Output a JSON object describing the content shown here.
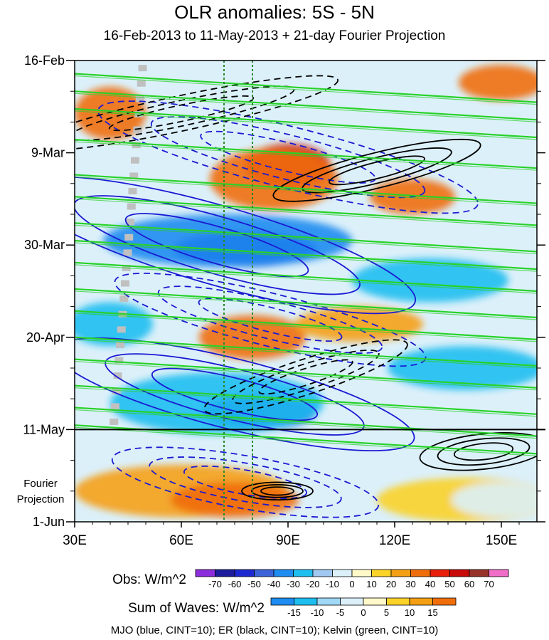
{
  "chart_data": {
    "type": "heatmap",
    "title": "OLR anomalies: 5S - 5N",
    "subtitle": "16-Feb-2013 to 11-May-2013 + 21-day Fourier Projection",
    "x_ticks": [
      "30E",
      "60E",
      "90E",
      "120E",
      "150E"
    ],
    "x_tick_values": [
      30,
      60,
      90,
      120,
      150
    ],
    "xlim": [
      30,
      160
    ],
    "y_ticks": [
      "16-Feb",
      "9-Mar",
      "30-Mar",
      "20-Apr",
      "11-May",
      "1-Jun"
    ],
    "y_tick_days": [
      0,
      21,
      42,
      63,
      84,
      105
    ],
    "ylim_days": [
      0,
      105
    ],
    "projection_label": [
      "Fourier",
      "Projection"
    ],
    "projection_start": "11-May",
    "reference_lines": [
      72,
      80
    ],
    "obs_colorbar": {
      "label": "Obs: W/m^2",
      "levels": [
        -70,
        -60,
        -50,
        -40,
        -30,
        -20,
        -10,
        0,
        10,
        20,
        30,
        40,
        50,
        60,
        70
      ],
      "colors": [
        "#8c2cdc",
        "#1c1c9c",
        "#1e28d0",
        "#3c64d8",
        "#1e8cf0",
        "#1ebef0",
        "#a0c8f0",
        "#dcf0fa",
        "#fff8c8",
        "#fad228",
        "#f5a014",
        "#f06e0a",
        "#e61e0a",
        "#c80a0a",
        "#963228",
        "#f06ec8"
      ]
    },
    "waves_colorbar": {
      "label": "Sum of Waves: W/m^2",
      "levels": [
        -15,
        -10,
        -5,
        0,
        5,
        10,
        15
      ],
      "colors": [
        "#1e8cf0",
        "#1ebef0",
        "#a0d8f5",
        "#dcf0fa",
        "#fff8c8",
        "#fad228",
        "#f5a014",
        "#f06e0a"
      ]
    },
    "footer": "MJO (blue, CINT=10); ER (black, CINT=10); Kelvin (green, CINT=10)",
    "series": [
      {
        "name": "MJO",
        "color": "#1a1ad2",
        "centers": [
          {
            "lon": 70,
            "day": 42,
            "rx": 58,
            "ry": 9,
            "angle": 16,
            "sign": -1
          },
          {
            "lon": 75,
            "day": 76,
            "rx": 52,
            "ry": 8,
            "angle": 14,
            "sign": -1
          },
          {
            "lon": 90,
            "day": 22,
            "rx": 55,
            "ry": 7,
            "angle": 14,
            "sign": 1
          },
          {
            "lon": 85,
            "day": 59,
            "rx": 45,
            "ry": 6,
            "angle": 14,
            "sign": 1
          },
          {
            "lon": 78,
            "day": 96,
            "rx": 38,
            "ry": 6,
            "angle": 10,
            "sign": 1
          }
        ]
      },
      {
        "name": "ER",
        "color": "#000000",
        "centers": [
          {
            "lon": 60,
            "day": 12,
            "rx": 45,
            "ry": 4,
            "angle": -12,
            "sign": 1
          },
          {
            "lon": 115,
            "day": 25,
            "rx": 30,
            "ry": 4,
            "angle": -14,
            "sign": -1
          },
          {
            "lon": 95,
            "day": 72,
            "rx": 30,
            "ry": 4,
            "angle": -18,
            "sign": 1
          },
          {
            "lon": 145,
            "day": 89,
            "rx": 18,
            "ry": 4,
            "angle": -6,
            "sign": -1
          },
          {
            "lon": 87,
            "day": 98,
            "rx": 10,
            "ry": 2,
            "angle": 0,
            "sign": -1
          }
        ]
      },
      {
        "name": "Kelvin",
        "color": "#28d228",
        "lines": [
          {
            "day0": 3,
            "slope": 0.05
          },
          {
            "day0": 7,
            "slope": 0.05
          },
          {
            "day0": 11,
            "slope": 0.05
          },
          {
            "day0": 18,
            "slope": 0.05
          },
          {
            "day0": 26,
            "slope": 0.05
          },
          {
            "day0": 31,
            "slope": 0.05
          },
          {
            "day0": 37,
            "slope": 0.05
          },
          {
            "day0": 41,
            "slope": 0.05
          },
          {
            "day0": 46,
            "slope": 0.05
          },
          {
            "day0": 52,
            "slope": 0.05
          },
          {
            "day0": 57,
            "slope": 0.05
          },
          {
            "day0": 63,
            "slope": 0.05
          },
          {
            "day0": 68,
            "slope": 0.05
          },
          {
            "day0": 74,
            "slope": 0.05
          },
          {
            "day0": 79,
            "slope": 0.05
          },
          {
            "day0": 83,
            "slope": 0.05
          }
        ]
      }
    ],
    "anomaly_blobs": [
      {
        "lon": 90,
        "day": 24,
        "rx": 12,
        "ry": 5,
        "value": 55
      },
      {
        "lon": 86,
        "day": 27,
        "rx": 18,
        "ry": 7,
        "value": 35
      },
      {
        "lon": 78,
        "day": 43,
        "rx": 20,
        "ry": 4,
        "value": -60
      },
      {
        "lon": 73,
        "day": 41,
        "rx": 35,
        "ry": 6,
        "value": -35
      },
      {
        "lon": 82,
        "day": 80,
        "rx": 16,
        "ry": 4,
        "value": -55
      },
      {
        "lon": 70,
        "day": 78,
        "rx": 30,
        "ry": 7,
        "value": -30
      },
      {
        "lon": 80,
        "day": 63,
        "rx": 15,
        "ry": 5,
        "value": 30
      },
      {
        "lon": 125,
        "day": 31,
        "rx": 12,
        "ry": 4,
        "value": 35
      },
      {
        "lon": 150,
        "day": 5,
        "rx": 12,
        "ry": 4,
        "value": 30
      },
      {
        "lon": 40,
        "day": 12,
        "rx": 10,
        "ry": 6,
        "value": 30
      },
      {
        "lon": 130,
        "day": 50,
        "rx": 22,
        "ry": 5,
        "value": -30
      },
      {
        "lon": 140,
        "day": 70,
        "rx": 22,
        "ry": 5,
        "value": -25
      },
      {
        "lon": 110,
        "day": 60,
        "rx": 18,
        "ry": 4,
        "value": 20
      },
      {
        "lon": 40,
        "day": 60,
        "rx": 12,
        "ry": 5,
        "value": -30
      },
      {
        "lon": 60,
        "day": 98,
        "rx": 30,
        "ry": 6,
        "value": 12
      },
      {
        "lon": 75,
        "day": 100,
        "rx": 18,
        "ry": 4,
        "value": 17
      },
      {
        "lon": 140,
        "day": 100,
        "rx": 25,
        "ry": 5,
        "value": 7
      },
      {
        "lon": 150,
        "day": 100,
        "rx": 14,
        "ry": 4,
        "value": -5
      }
    ]
  }
}
